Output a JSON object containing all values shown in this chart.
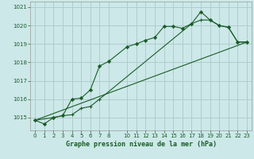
{
  "title": "Graphe pression niveau de la mer (hPa)",
  "bg_color": "#cce8e8",
  "grid_color": "#b0cccc",
  "line_color": "#1a5c28",
  "xlim": [
    -0.5,
    23.5
  ],
  "ylim": [
    1014.3,
    1021.3
  ],
  "yticks": [
    1015,
    1016,
    1017,
    1018,
    1019,
    1020,
    1021
  ],
  "ytick_labels": [
    "1015",
    "1016",
    "1017",
    "1018",
    "1019",
    "1020",
    "1021"
  ],
  "xticks": [
    0,
    1,
    2,
    3,
    4,
    5,
    6,
    7,
    8,
    10,
    11,
    12,
    13,
    14,
    15,
    16,
    17,
    18,
    19,
    20,
    21,
    22,
    23
  ],
  "xtick_labels": [
    "0",
    "1",
    "2",
    "3",
    "4",
    "5",
    "6",
    "7",
    "8",
    "10",
    "11",
    "12",
    "13",
    "14",
    "15",
    "16",
    "17",
    "18",
    "19",
    "20",
    "21",
    "22",
    "23"
  ],
  "series1_x": [
    0,
    1,
    2,
    3,
    4,
    5,
    6,
    7,
    8,
    10,
    11,
    12,
    13,
    14,
    15,
    16,
    17,
    18,
    19,
    20,
    21,
    22,
    23
  ],
  "series1_y": [
    1014.85,
    1014.65,
    1015.0,
    1015.1,
    1016.0,
    1016.05,
    1016.5,
    1017.8,
    1018.05,
    1018.85,
    1019.0,
    1019.2,
    1019.35,
    1019.95,
    1019.95,
    1019.85,
    1020.1,
    1020.75,
    1020.3,
    1020.0,
    1019.9,
    1019.1,
    1019.1
  ],
  "series2_x": [
    0,
    2,
    3,
    4,
    5,
    6,
    7,
    17,
    18,
    19,
    20,
    21,
    22,
    23
  ],
  "series2_y": [
    1014.85,
    1015.0,
    1015.1,
    1015.15,
    1015.5,
    1015.6,
    1016.0,
    1020.1,
    1020.3,
    1020.3,
    1020.0,
    1019.9,
    1019.1,
    1019.1
  ],
  "series3_x": [
    0,
    23
  ],
  "series3_y": [
    1014.85,
    1019.1
  ]
}
